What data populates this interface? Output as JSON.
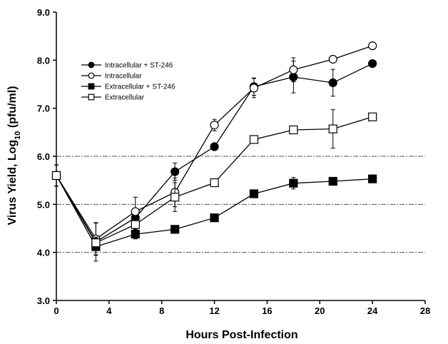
{
  "chart_data": {
    "type": "line",
    "xlabel": "Hours Post-Infection",
    "ylabel_main": "Virus Yield, Log",
    "ylabel_sub": "10",
    "ylabel_tail": " (pfu/ml)",
    "xlim": [
      0,
      28
    ],
    "ylim": [
      3.0,
      9.0
    ],
    "xticks": [
      0,
      4,
      8,
      12,
      16,
      20,
      24,
      28
    ],
    "yticks": [
      3.0,
      4.0,
      5.0,
      6.0,
      7.0,
      8.0,
      9.0
    ],
    "ytick_labels": [
      "3.0",
      "4.0",
      "5.0",
      "6.0",
      "7.0",
      "8.0",
      "9.0"
    ],
    "grid_y": [
      4.0,
      5.0,
      6.0
    ],
    "legend_position": "top-left",
    "series": [
      {
        "name": "Intracellular + ST-246",
        "marker": "filled-circle",
        "x": [
          0,
          3,
          6,
          9,
          12,
          15,
          18,
          21,
          24
        ],
        "y": [
          5.6,
          4.22,
          4.72,
          5.68,
          6.2,
          7.45,
          7.65,
          7.53,
          7.93
        ],
        "err": [
          0.22,
          0.4,
          0.15,
          0.18,
          0.05,
          0.18,
          0.33,
          0.28,
          0.05
        ]
      },
      {
        "name": "Intracellular",
        "marker": "open-circle",
        "x": [
          0,
          3,
          6,
          9,
          12,
          15,
          18,
          21,
          24
        ],
        "y": [
          5.6,
          4.28,
          4.85,
          5.25,
          6.65,
          7.42,
          7.8,
          8.02,
          8.3
        ],
        "err": [
          0.22,
          0.33,
          0.3,
          0.3,
          0.12,
          0.2,
          0.25,
          0.05,
          0.05
        ]
      },
      {
        "name": "Extracellular + ST-246",
        "marker": "filled-square",
        "x": [
          0,
          3,
          6,
          9,
          12,
          15,
          18,
          21,
          24
        ],
        "y": [
          5.6,
          4.12,
          4.38,
          4.48,
          4.72,
          5.22,
          5.44,
          5.48,
          5.53
        ],
        "err": [
          0.22,
          0.18,
          0.1,
          0.05,
          0.05,
          0.05,
          0.12,
          0.08,
          0.05
        ]
      },
      {
        "name": "Extracellular",
        "marker": "open-square",
        "x": [
          0,
          3,
          6,
          9,
          12,
          15,
          18,
          21,
          24
        ],
        "y": [
          5.6,
          4.2,
          4.58,
          5.15,
          5.45,
          6.35,
          6.55,
          6.57,
          6.82
        ],
        "err": [
          0.22,
          0.12,
          0.1,
          0.3,
          0.08,
          0.07,
          0.07,
          0.4,
          0.05
        ]
      }
    ]
  }
}
